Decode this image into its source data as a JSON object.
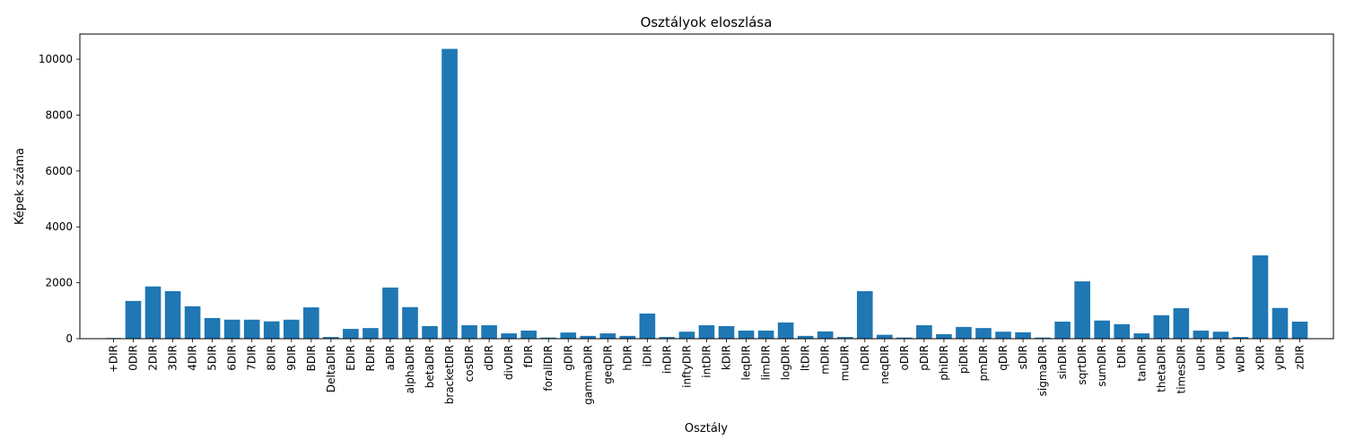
{
  "chart_data": {
    "type": "bar",
    "title": "Osztályok eloszlása",
    "xlabel": "Osztály",
    "ylabel": "Képek száma",
    "ylim": [
      0,
      10900
    ],
    "yticks": [
      0,
      2000,
      4000,
      6000,
      8000,
      10000
    ],
    "grid": false,
    "bar_color": "#1f77b4",
    "categories": [
      "+DIR",
      "0DIR",
      "2DIR",
      "3DIR",
      "4DIR",
      "5DIR",
      "6DIR",
      "7DIR",
      "8DIR",
      "9DIR",
      "BDIR",
      "DeltaDIR",
      "EDIR",
      "RDIR",
      "aDIR",
      "alphaDIR",
      "betaDIR",
      "bracketDIR",
      "cosDIR",
      "dDIR",
      "divDIR",
      "fDIR",
      "forallDIR",
      "gDIR",
      "gammaDIR",
      "geqDIR",
      "hDIR",
      "iDIR",
      "inDIR",
      "inftyDIR",
      "intDIR",
      "kDIR",
      "leqDIR",
      "limDIR",
      "logDIR",
      "ltDIR",
      "mDIR",
      "muDIR",
      "nDIR",
      "neqDIR",
      "oDIR",
      "pDIR",
      "phiDIR",
      "piDIR",
      "pmDIR",
      "qDIR",
      "sDIR",
      "sigmaDIR",
      "sinDIR",
      "sqrtDIR",
      "sumDIR",
      "tDIR",
      "tanDIR",
      "thetaDIR",
      "timesDIR",
      "uDIR",
      "vDIR",
      "wDIR",
      "xDIR",
      "yDIR",
      "zDIR"
    ],
    "values": [
      25,
      1350,
      1870,
      1700,
      1160,
      740,
      680,
      680,
      620,
      680,
      1120,
      60,
      350,
      380,
      1830,
      1130,
      450,
      10370,
      480,
      480,
      190,
      290,
      40,
      220,
      100,
      190,
      100,
      900,
      60,
      250,
      480,
      450,
      290,
      290,
      580,
      100,
      260,
      60,
      1700,
      140,
      40,
      480,
      160,
      420,
      380,
      250,
      230,
      40,
      610,
      2050,
      650,
      520,
      190,
      840,
      1090,
      290,
      250,
      60,
      2980,
      1100,
      610
    ]
  }
}
